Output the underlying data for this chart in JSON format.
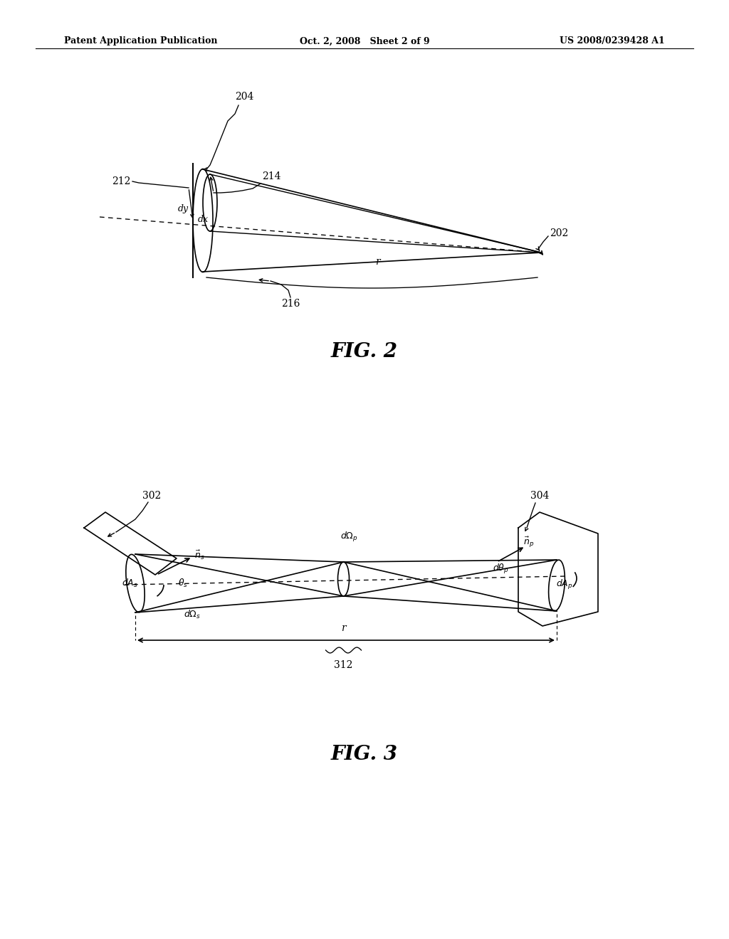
{
  "bg_color": "#ffffff",
  "line_color": "#000000",
  "header_left": "Patent Application Publication",
  "header_center": "Oct. 2, 2008   Sheet 2 of 9",
  "header_right": "US 2008/0239428 A1",
  "fig2_caption": "FIG. 2",
  "fig3_caption": "FIG. 3"
}
